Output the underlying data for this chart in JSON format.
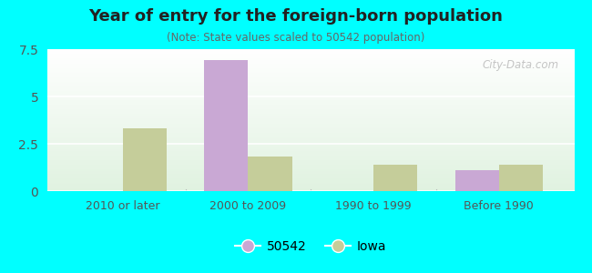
{
  "title": "Year of entry for the foreign-born population",
  "subtitle": "(Note: State values scaled to 50542 population)",
  "categories": [
    "2010 or later",
    "2000 to 2009",
    "1990 to 1999",
    "Before 1990"
  ],
  "series_50542": [
    0,
    6.9,
    0,
    1.1
  ],
  "series_iowa": [
    3.3,
    1.85,
    1.4,
    1.4
  ],
  "color_50542": "#c9a8d4",
  "color_iowa": "#c5cd9a",
  "ylim": [
    0,
    7.5
  ],
  "yticks": [
    0,
    2.5,
    5,
    7.5
  ],
  "legend_labels": [
    "50542",
    "Iowa"
  ],
  "background_color": "#00ffff",
  "bar_width": 0.35,
  "watermark": "City-Data.com"
}
